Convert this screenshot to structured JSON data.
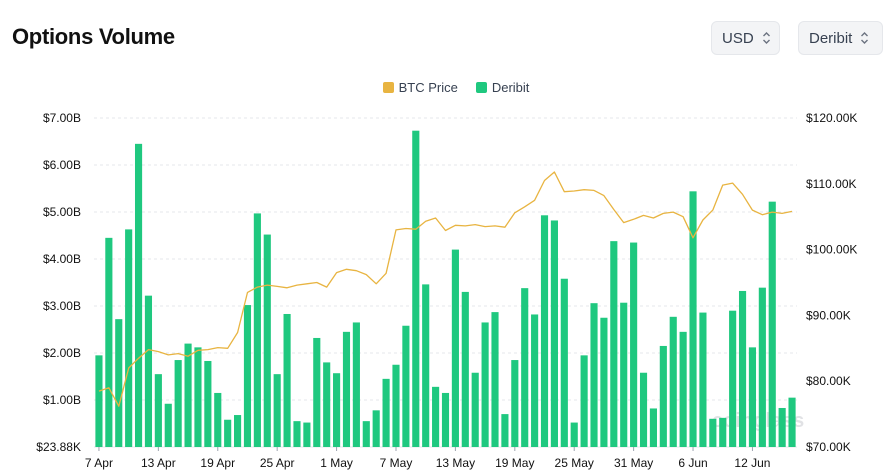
{
  "header": {
    "title": "Options Volume",
    "currency_select": "USD",
    "exchange_select": "Deribit"
  },
  "legend": {
    "price_label": "BTC Price",
    "volume_label": "Deribit"
  },
  "watermark": "coinglass",
  "colors": {
    "bar": "#1fc87f",
    "price_line": "#e8b441",
    "grid": "#e5e7eb"
  },
  "chart_data": {
    "type": "bar",
    "title": "Options Volume",
    "x_tick_labels": [
      "7 Apr",
      "13 Apr",
      "19 Apr",
      "25 Apr",
      "1 May",
      "7 May",
      "13 May",
      "19 May",
      "25 May",
      "31 May",
      "6 Jun",
      "12 Jun"
    ],
    "y_left_tick_labels": [
      "$23.88K",
      "$1.00B",
      "$2.00B",
      "$3.00B",
      "$4.00B",
      "$5.00B",
      "$6.00B",
      "$7.00B"
    ],
    "y_right_tick_labels": [
      "$70.00K",
      "$80.00K",
      "$90.00K",
      "$100.00K",
      "$110.00K",
      "$120.00K"
    ],
    "y_left_range": [
      0,
      7.0
    ],
    "y_right_range": [
      70,
      120
    ],
    "grid": true,
    "legend_position": "top-center",
    "x": [
      "7 Apr",
      "8 Apr",
      "9 Apr",
      "10 Apr",
      "11 Apr",
      "12 Apr",
      "13 Apr",
      "14 Apr",
      "15 Apr",
      "16 Apr",
      "17 Apr",
      "18 Apr",
      "19 Apr",
      "20 Apr",
      "21 Apr",
      "22 Apr",
      "23 Apr",
      "24 Apr",
      "25 Apr",
      "26 Apr",
      "27 Apr",
      "28 Apr",
      "29 Apr",
      "30 Apr",
      "1 May",
      "2 May",
      "3 May",
      "4 May",
      "5 May",
      "6 May",
      "7 May",
      "8 May",
      "9 May",
      "10 May",
      "11 May",
      "12 May",
      "13 May",
      "14 May",
      "15 May",
      "16 May",
      "17 May",
      "18 May",
      "19 May",
      "20 May",
      "21 May",
      "22 May",
      "23 May",
      "24 May",
      "25 May",
      "26 May",
      "27 May",
      "28 May",
      "29 May",
      "30 May",
      "31 May",
      "1 Jun",
      "2 Jun",
      "3 Jun",
      "4 Jun",
      "5 Jun",
      "6 Jun",
      "7 Jun",
      "8 Jun",
      "9 Jun",
      "10 Jun",
      "11 Jun",
      "12 Jun",
      "13 Jun",
      "14 Jun",
      "15 Jun",
      "16 Jun"
    ],
    "series": [
      {
        "name": "Deribit",
        "axis": "left",
        "values": [
          1.95,
          4.45,
          2.72,
          4.63,
          6.45,
          3.22,
          1.55,
          0.92,
          1.85,
          2.2,
          2.12,
          1.83,
          1.15,
          0.58,
          0.68,
          3.02,
          4.97,
          4.52,
          1.55,
          2.83,
          0.55,
          0.52,
          2.32,
          1.8,
          1.57,
          2.45,
          2.65,
          0.55,
          0.78,
          1.45,
          1.75,
          2.58,
          6.73,
          3.46,
          1.28,
          1.15,
          4.2,
          3.3,
          1.58,
          2.65,
          2.87,
          0.7,
          1.85,
          3.38,
          2.82,
          4.93,
          4.82,
          3.58,
          0.52,
          1.95,
          3.06,
          2.75,
          4.38,
          3.07,
          4.35,
          1.58,
          0.82,
          2.15,
          2.77,
          2.45,
          5.44,
          2.86,
          0.6,
          0.62,
          2.9,
          3.32,
          2.12,
          3.39,
          5.22,
          0.83,
          1.05
        ]
      },
      {
        "name": "BTC Price",
        "axis": "right",
        "values": [
          78.5,
          79,
          76.2,
          82,
          83.5,
          84.8,
          84.5,
          84,
          84.2,
          83.8,
          84.7,
          84.8,
          85.1,
          85,
          87.4,
          93.5,
          94.3,
          94.6,
          94.4,
          94.2,
          94.6,
          94.8,
          95,
          94.3,
          96.5,
          97,
          96.8,
          96.2,
          94.8,
          96.4,
          103,
          103.2,
          103.1,
          104.3,
          104.8,
          102.9,
          103.7,
          103.6,
          103.8,
          103.5,
          103.6,
          103.4,
          105.6,
          106.5,
          107.5,
          110.5,
          111.8,
          108.8,
          108.9,
          109.1,
          109,
          108.2,
          106.1,
          104.1,
          104.6,
          105.2,
          104.8,
          105.5,
          105.7,
          105,
          101.8,
          104.5,
          106,
          109.8,
          110.1,
          108.4,
          106,
          105.3,
          105.7,
          105.5,
          105.8
        ]
      }
    ]
  }
}
